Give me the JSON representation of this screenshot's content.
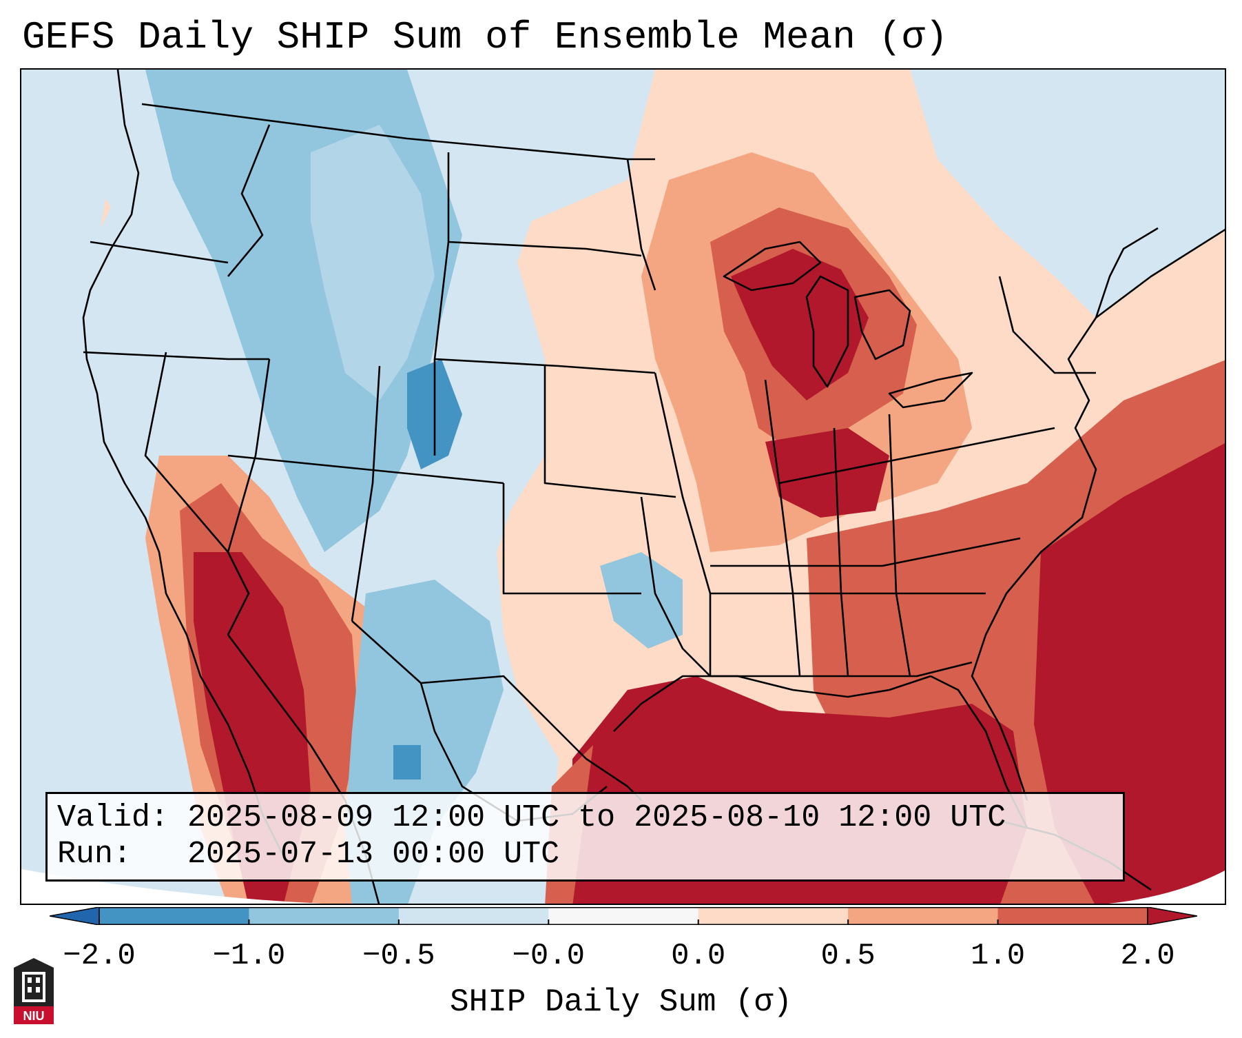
{
  "title": "GEFS Daily SHIP Sum of Ensemble Mean (σ)",
  "info": {
    "valid_label": "Valid:",
    "valid_value": "2025-08-09 12:00 UTC to 2025-08-10 12:00 UTC",
    "run_label": "Run:",
    "run_value": "2025-07-13 00:00 UTC"
  },
  "colorbar": {
    "label": "SHIP Daily Sum (σ)",
    "ticks": [
      "−2.0",
      "−1.0",
      "−0.5",
      "−0.0",
      "0.0",
      "0.5",
      "1.0",
      "2.0"
    ],
    "colors": [
      "#2166ac",
      "#4393c3",
      "#92c5de",
      "#d1e5f0",
      "#f7f7f7",
      "#fddbc7",
      "#f4a582",
      "#d6604d",
      "#b2182b"
    ],
    "extend": "both"
  },
  "logo": {
    "text": "NIU",
    "description_icon": "niu-university-logo-icon"
  },
  "map": {
    "projection": "lambert-conformal",
    "region": "Contiguous United States",
    "field_description_icon": "gridded-anomaly-shading",
    "strongest_positive": [
      "Gulf of Mexico",
      "Southeast coast / Atlantic",
      "Upper Midwest / Great Lakes",
      "Desert Southwest / Mexico"
    ],
    "negative": [
      "Northern Rockies",
      "Great Basin",
      "Colorado",
      "West Texas"
    ]
  }
}
